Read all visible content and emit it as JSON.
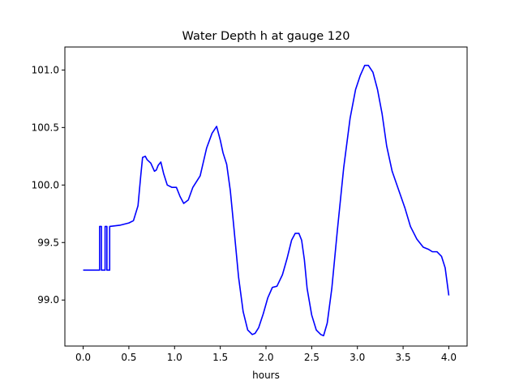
{
  "chart_data": {
    "type": "line",
    "title": "Water Depth h at gauge 120",
    "xlabel": "hours",
    "ylabel": "",
    "xlim": [
      -0.2,
      4.2
    ],
    "ylim": [
      98.6,
      101.2
    ],
    "xticks": [
      0.0,
      0.5,
      1.0,
      1.5,
      2.0,
      2.5,
      3.0,
      3.5,
      4.0
    ],
    "xtick_labels": [
      "0.0",
      "0.5",
      "1.0",
      "1.5",
      "2.0",
      "2.5",
      "3.0",
      "3.5",
      "4.0"
    ],
    "yticks": [
      99.0,
      99.5,
      100.0,
      100.5,
      101.0
    ],
    "ytick_labels": [
      "99.0",
      "99.5",
      "100.0",
      "100.5",
      "101.0"
    ],
    "grid": false,
    "legend": "none",
    "series": [
      {
        "color": "#0000ff",
        "x": [
          0.0,
          0.18,
          0.18,
          0.2,
          0.2,
          0.24,
          0.24,
          0.26,
          0.26,
          0.29,
          0.29,
          0.4,
          0.5,
          0.55,
          0.6,
          0.63,
          0.65,
          0.68,
          0.7,
          0.74,
          0.78,
          0.8,
          0.82,
          0.85,
          0.88,
          0.92,
          0.97,
          1.02,
          1.06,
          1.1,
          1.15,
          1.2,
          1.28,
          1.35,
          1.41,
          1.46,
          1.5,
          1.53,
          1.57,
          1.61,
          1.65,
          1.7,
          1.75,
          1.8,
          1.85,
          1.88,
          1.92,
          1.97,
          2.02,
          2.07,
          2.12,
          2.18,
          2.23,
          2.28,
          2.32,
          2.36,
          2.39,
          2.42,
          2.45,
          2.5,
          2.55,
          2.6,
          2.63,
          2.67,
          2.72,
          2.78,
          2.85,
          2.92,
          2.98,
          3.03,
          3.08,
          3.12,
          3.17,
          3.22,
          3.27,
          3.32,
          3.38,
          3.45,
          3.52,
          3.58,
          3.65,
          3.72,
          3.78,
          3.82,
          3.87,
          3.92,
          3.96,
          4.0
        ],
        "y": [
          99.26,
          99.26,
          99.64,
          99.64,
          99.26,
          99.26,
          99.64,
          99.64,
          99.26,
          99.26,
          99.64,
          99.65,
          99.67,
          99.69,
          99.82,
          100.08,
          100.24,
          100.25,
          100.22,
          100.19,
          100.12,
          100.13,
          100.17,
          100.2,
          100.1,
          100.0,
          99.98,
          99.98,
          99.9,
          99.84,
          99.87,
          99.98,
          100.08,
          100.32,
          100.45,
          100.51,
          100.39,
          100.28,
          100.18,
          99.95,
          99.62,
          99.2,
          98.9,
          98.74,
          98.7,
          98.71,
          98.76,
          98.88,
          99.02,
          99.11,
          99.12,
          99.22,
          99.36,
          99.52,
          99.58,
          99.58,
          99.52,
          99.35,
          99.1,
          98.87,
          98.74,
          98.7,
          98.69,
          98.8,
          99.1,
          99.6,
          100.15,
          100.58,
          100.83,
          100.95,
          101.04,
          101.04,
          100.98,
          100.83,
          100.62,
          100.34,
          100.12,
          99.96,
          99.8,
          99.64,
          99.53,
          99.46,
          99.44,
          99.42,
          99.42,
          99.38,
          99.28,
          99.04
        ]
      }
    ]
  }
}
